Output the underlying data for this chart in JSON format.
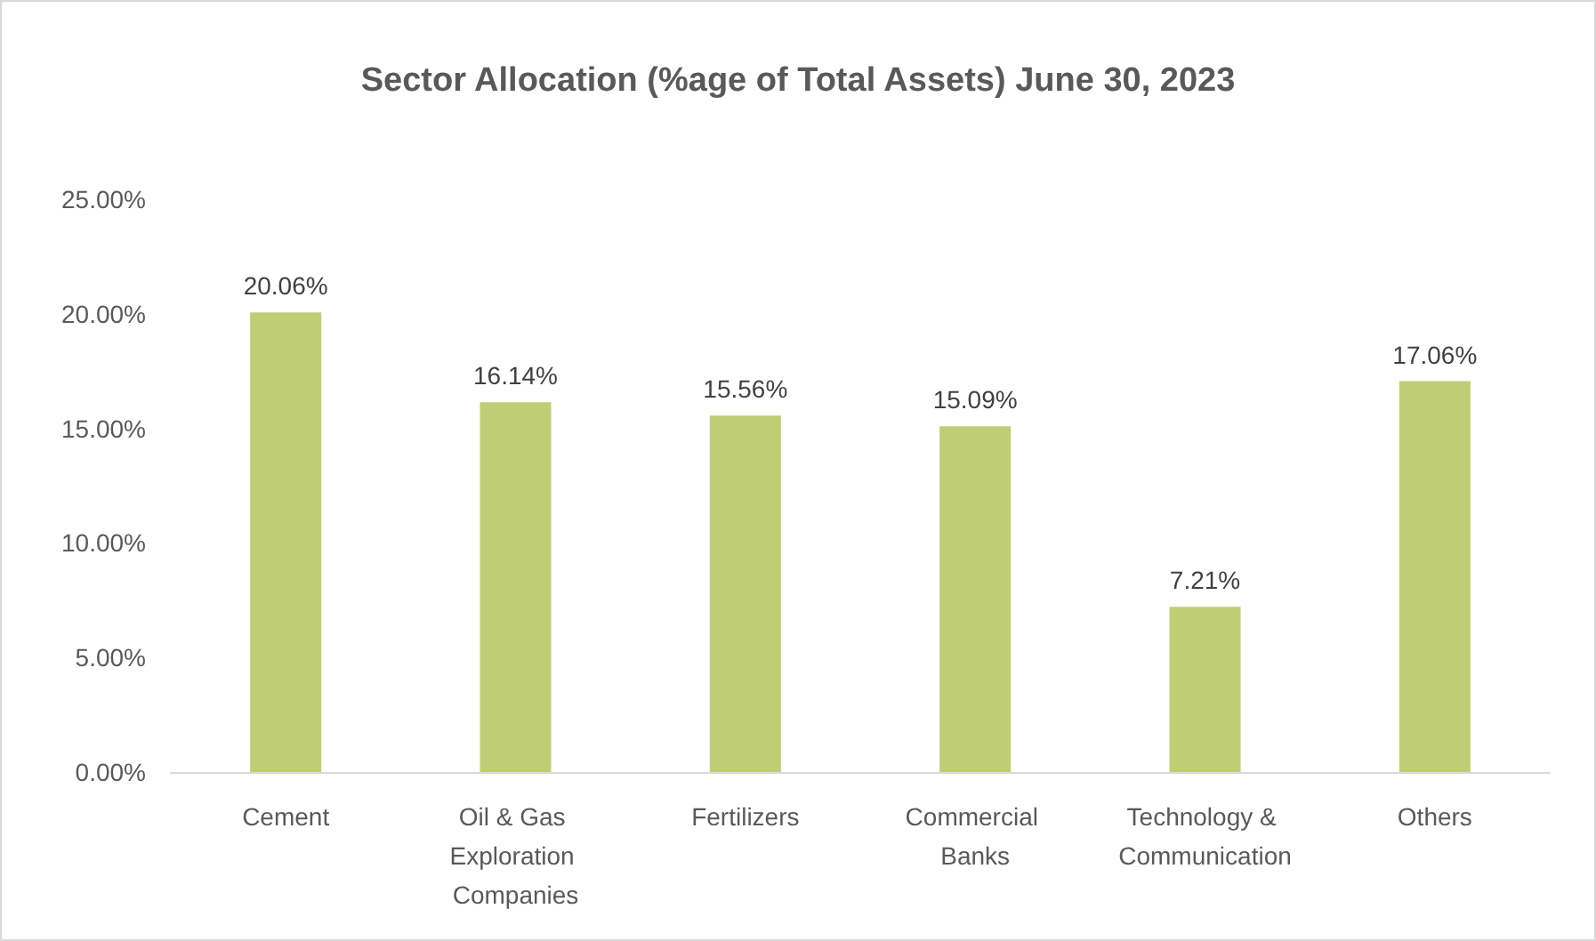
{
  "chart_data": {
    "type": "bar",
    "title": "Sector Allocation (%age of Total Assets) June 30, 2023",
    "categories": [
      "Cement",
      "Oil & Gas Exploration Companies",
      "Fertilizers",
      "Commercial Banks",
      "Technology & Communication",
      "Others"
    ],
    "values": [
      20.06,
      16.14,
      15.56,
      15.09,
      7.21,
      17.06
    ],
    "value_labels": [
      "20.06%",
      "16.14%",
      "15.56%",
      "15.09%",
      "7.21%",
      "17.06%"
    ],
    "color": "#bfce74",
    "ylim": [
      0,
      25
    ],
    "yticks": [
      {
        "value": 0,
        "label": "0.00%"
      },
      {
        "value": 5,
        "label": "5.00%"
      },
      {
        "value": 10,
        "label": "10.00%"
      },
      {
        "value": 15,
        "label": "15.00%"
      },
      {
        "value": 20,
        "label": "20.00%"
      },
      {
        "value": 25,
        "label": "25.00%"
      }
    ],
    "grid": false
  }
}
